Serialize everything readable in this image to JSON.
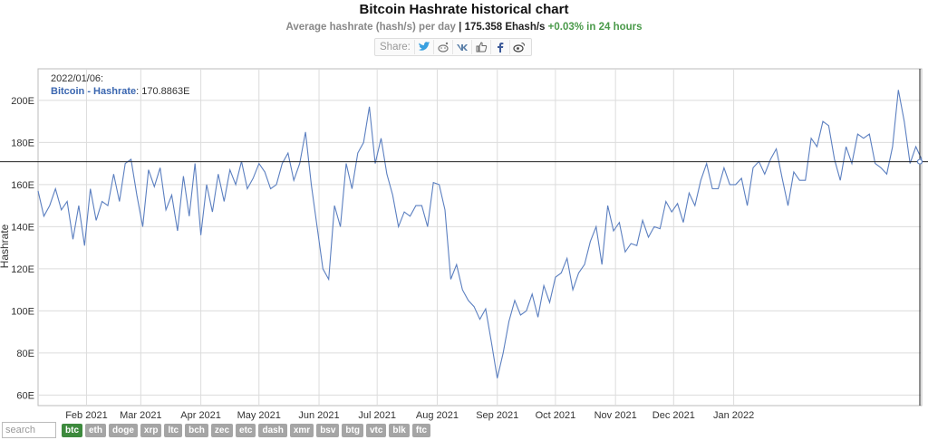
{
  "header": {
    "title": "Bitcoin Hashrate historical chart",
    "subtitle_prefix": "Average hashrate (hash/s) per day",
    "subtitle_sep": "|",
    "current_value": "175.358 Ehash/s",
    "change": "+0.03% in 24 hours"
  },
  "share": {
    "label": "Share:",
    "icons": [
      "twitter-icon",
      "reddit-icon",
      "vk-icon",
      "like-icon",
      "facebook-icon",
      "weibo-icon"
    ]
  },
  "tooltip": {
    "date": "2022/01/06:",
    "series": "Bitcoin - Hashrate",
    "value": ": 170.8863E"
  },
  "search": {
    "placeholder": "search"
  },
  "coins": [
    "btc",
    "eth",
    "doge",
    "xrp",
    "ltc",
    "bch",
    "zec",
    "etc",
    "dash",
    "xmr",
    "bsv",
    "btg",
    "vtc",
    "blk",
    "ftc"
  ],
  "active_coin": "btc",
  "colors": {
    "line": "#5b7fc0",
    "grid": "#dcdcdc",
    "active_coin": "#3d8a3d",
    "change": "#4a9a4a"
  },
  "chart_data": {
    "type": "line",
    "ylabel": "Hashrate",
    "ylim": [
      55,
      215
    ],
    "yticks": [
      "60E",
      "80E",
      "100E",
      "120E",
      "140E",
      "160E",
      "180E",
      "200E"
    ],
    "ytick_values": [
      60,
      80,
      100,
      120,
      140,
      160,
      180,
      200
    ],
    "xticks": [
      "Feb 2021",
      "Mar 2021",
      "Apr 2021",
      "May 2021",
      "Jun 2021",
      "Jul 2021",
      "Aug 2021",
      "Sep 2021",
      "Oct 2021",
      "Nov 2021",
      "Dec 2021",
      "Jan 2022"
    ],
    "crosshair_value": 170.8863,
    "series": [
      {
        "name": "Bitcoin - Hashrate",
        "x_start": "2021-01-07",
        "x_step_days": 3,
        "values": [
          157,
          145,
          150,
          158,
          148,
          152,
          134,
          150,
          131,
          158,
          143,
          152,
          150,
          165,
          152,
          170,
          172,
          155,
          140,
          167,
          159,
          168,
          148,
          155,
          138,
          164,
          145,
          170,
          136,
          160,
          147,
          165,
          152,
          167,
          160,
          171,
          158,
          163,
          170,
          166,
          158,
          160,
          170,
          175,
          162,
          170,
          185,
          160,
          140,
          120,
          115,
          150,
          140,
          170,
          158,
          175,
          180,
          197,
          170,
          182,
          165,
          155,
          140,
          147,
          145,
          150,
          150,
          140,
          161,
          160,
          148,
          115,
          122,
          110,
          105,
          102,
          96,
          101,
          85,
          68,
          80,
          95,
          105,
          98,
          100,
          108,
          97,
          112,
          104,
          116,
          118,
          125,
          110,
          118,
          122,
          133,
          140,
          122,
          150,
          138,
          142,
          128,
          132,
          131,
          143,
          135,
          140,
          139,
          152,
          147,
          151,
          142,
          156,
          150,
          162,
          170,
          158,
          158,
          168,
          160,
          160,
          163,
          150,
          168,
          171,
          165,
          172,
          177,
          163,
          150,
          166,
          162,
          162,
          182,
          178,
          190,
          188,
          172,
          162,
          178,
          170,
          184,
          182,
          184,
          170,
          168,
          165,
          178,
          205,
          190,
          170,
          178,
          172
        ]
      }
    ]
  }
}
